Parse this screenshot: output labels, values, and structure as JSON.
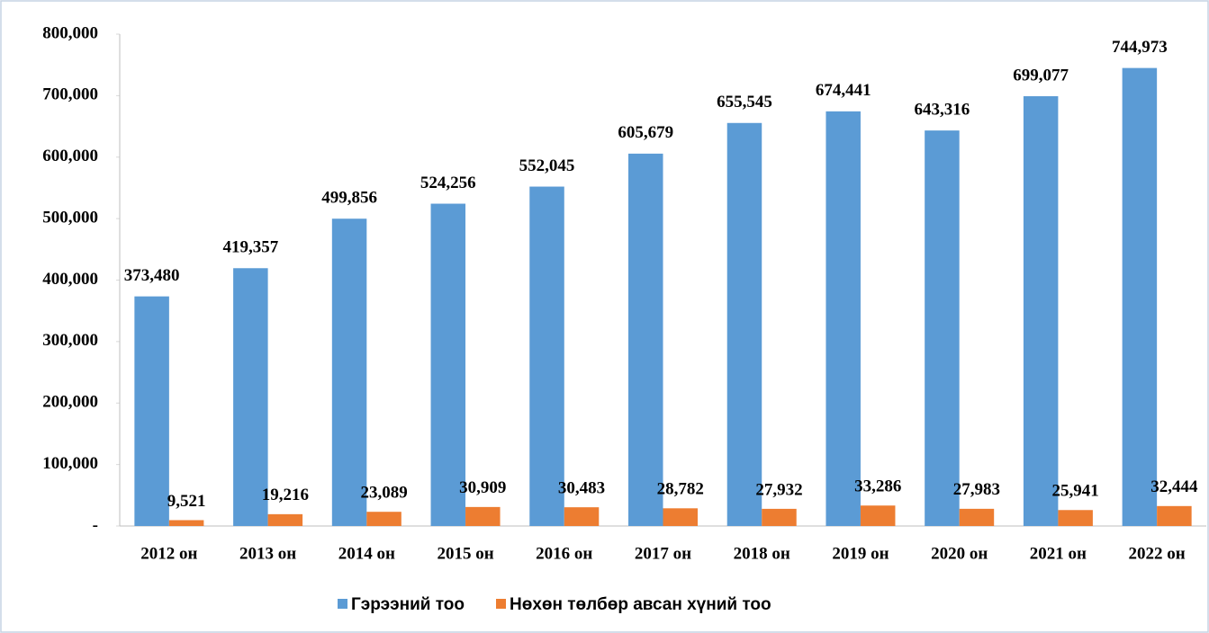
{
  "chart_data": {
    "type": "bar",
    "categories": [
      "2012 он",
      "2013 он",
      "2014 он",
      "2015 он",
      "2016 он",
      "2017 он",
      "2018 он",
      "2019 он",
      "2020 он",
      "2021 он",
      "2022 он"
    ],
    "series": [
      {
        "name": "Гэрээний тоо",
        "color": "#5b9bd5",
        "values": [
          373480,
          419357,
          499856,
          524256,
          552045,
          605679,
          655545,
          674441,
          643316,
          699077,
          744973
        ],
        "value_labels": [
          "373,480",
          "419,357",
          "499,856",
          "524,256",
          "552,045",
          "605,679",
          "655,545",
          "674,441",
          "643,316",
          "699,077",
          "744,973"
        ]
      },
      {
        "name": "Нөхөн төлбөр авсан хүний тоо",
        "color": "#ed7d31",
        "values": [
          9521,
          19216,
          23089,
          30909,
          30483,
          28782,
          27932,
          33286,
          27983,
          25941,
          32444
        ],
        "value_labels": [
          "9,521",
          "19,216",
          "23,089",
          "30,909",
          "30,483",
          "28,782",
          "27,932",
          "33,286",
          "27,983",
          "25,941",
          "32,444"
        ]
      }
    ],
    "ylim": [
      0,
      800000
    ],
    "yticks": [
      {
        "value": 0,
        "label": "-"
      },
      {
        "value": 100000,
        "label": "100,000"
      },
      {
        "value": 200000,
        "label": "200,000"
      },
      {
        "value": 300000,
        "label": "300,000"
      },
      {
        "value": 400000,
        "label": "400,000"
      },
      {
        "value": 500000,
        "label": "500,000"
      },
      {
        "value": 600000,
        "label": "600,000"
      },
      {
        "value": 700000,
        "label": "700,000"
      },
      {
        "value": 800000,
        "label": "800,000"
      }
    ],
    "grid": false,
    "legend": "bottom"
  }
}
